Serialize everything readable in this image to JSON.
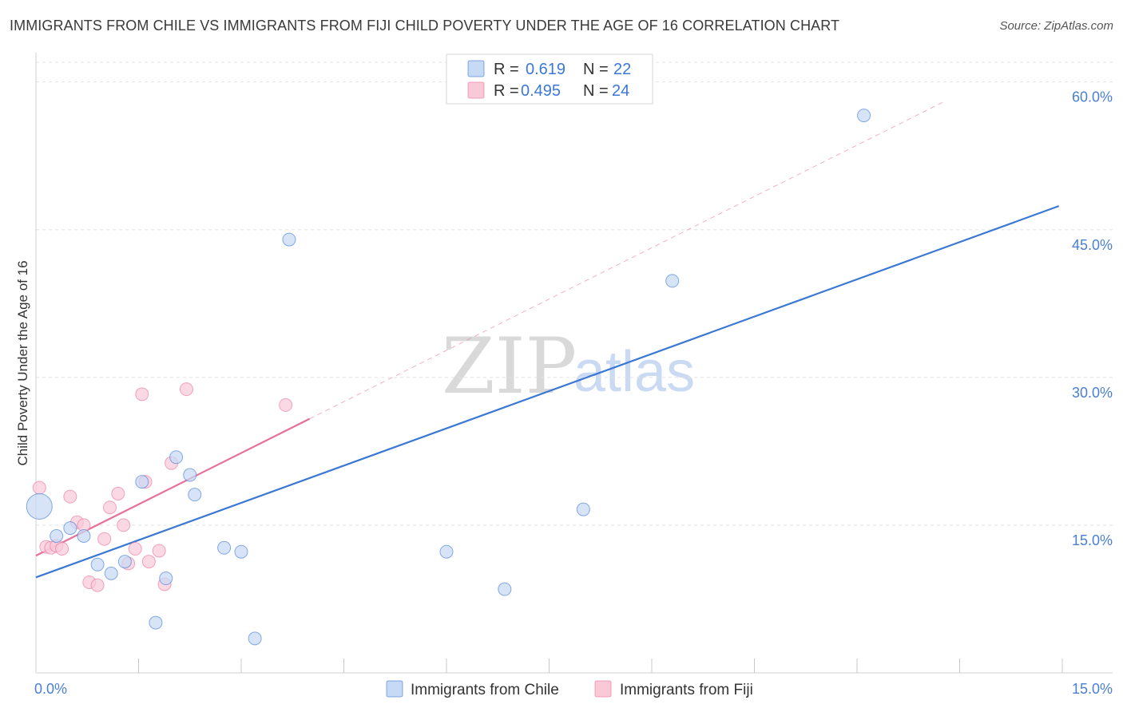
{
  "title": "IMMIGRANTS FROM CHILE VS IMMIGRANTS FROM FIJI CHILD POVERTY UNDER THE AGE OF 16 CORRELATION CHART",
  "source": "Source: ZipAtlas.com",
  "watermark": {
    "zip": "ZIP",
    "atlas": "atlas"
  },
  "colors": {
    "chile": "#3a78d4",
    "chile_fill": "#c6d9f5",
    "fiji": "#e7709a",
    "fiji_fill": "#f9c9d8",
    "tick": "#4a7fd4"
  },
  "legend": {
    "rows": [
      {
        "r_label": "R = ",
        "r_value": "0.619",
        "n_label": "N = ",
        "n_value": "22"
      },
      {
        "r_label": "R = ",
        "r_value": "0.495",
        "n_label": "N = ",
        "n_value": "24"
      }
    ]
  },
  "chart_data": {
    "type": "scatter",
    "title": "IMMIGRANTS FROM CHILE VS IMMIGRANTS FROM FIJI CHILD POVERTY UNDER THE AGE OF 16 CORRELATION CHART",
    "xlabel": "",
    "ylabel": "Child Poverty Under the Age of 16",
    "xlim": [
      0,
      15
    ],
    "ylim": [
      0,
      62
    ],
    "x_tick_labels": [
      "0.0%",
      "15.0%"
    ],
    "y_ticks": [
      15,
      30,
      45,
      60
    ],
    "y_tick_labels": [
      "15.0%",
      "30.0%",
      "45.0%",
      "60.0%"
    ],
    "grid": true,
    "legend_position": "top-center",
    "series": [
      {
        "name": "Immigrants from Chile",
        "r": 0.619,
        "n": 22,
        "trend": {
          "x": [
            0,
            14.95
          ],
          "y": [
            9.7,
            47.4
          ]
        },
        "points": [
          {
            "x": 0.05,
            "y": 16.9,
            "big": true
          },
          {
            "x": 0.3,
            "y": 13.9
          },
          {
            "x": 0.5,
            "y": 14.7
          },
          {
            "x": 0.7,
            "y": 13.9
          },
          {
            "x": 0.9,
            "y": 11.0
          },
          {
            "x": 1.1,
            "y": 10.1
          },
          {
            "x": 1.3,
            "y": 11.3
          },
          {
            "x": 1.55,
            "y": 19.4
          },
          {
            "x": 1.75,
            "y": 5.1
          },
          {
            "x": 1.9,
            "y": 9.6
          },
          {
            "x": 2.05,
            "y": 21.9
          },
          {
            "x": 2.25,
            "y": 20.1
          },
          {
            "x": 2.32,
            "y": 18.1
          },
          {
            "x": 2.75,
            "y": 12.7
          },
          {
            "x": 3.0,
            "y": 12.3
          },
          {
            "x": 3.2,
            "y": 3.5
          },
          {
            "x": 3.7,
            "y": 44.0
          },
          {
            "x": 6.0,
            "y": 12.3
          },
          {
            "x": 6.85,
            "y": 8.5
          },
          {
            "x": 8.0,
            "y": 16.6
          },
          {
            "x": 9.3,
            "y": 39.8
          },
          {
            "x": 12.1,
            "y": 56.6
          }
        ]
      },
      {
        "name": "Immigrants from Fiji",
        "r": 0.495,
        "n": 24,
        "trend": {
          "x": [
            0,
            4.0
          ],
          "y": [
            11.9,
            25.8
          ]
        },
        "trend_extended": {
          "x": [
            4.0,
            13.3
          ],
          "y": [
            25.8,
            58.1
          ]
        },
        "points": [
          {
            "x": 0.05,
            "y": 18.8
          },
          {
            "x": 0.15,
            "y": 12.8
          },
          {
            "x": 0.22,
            "y": 12.7
          },
          {
            "x": 0.3,
            "y": 12.9
          },
          {
            "x": 0.38,
            "y": 12.6
          },
          {
            "x": 0.5,
            "y": 17.9
          },
          {
            "x": 0.6,
            "y": 15.3
          },
          {
            "x": 0.7,
            "y": 15.0
          },
          {
            "x": 0.78,
            "y": 9.2
          },
          {
            "x": 0.9,
            "y": 8.9
          },
          {
            "x": 1.0,
            "y": 13.6
          },
          {
            "x": 1.08,
            "y": 16.8
          },
          {
            "x": 1.2,
            "y": 18.2
          },
          {
            "x": 1.28,
            "y": 15.0
          },
          {
            "x": 1.35,
            "y": 11.1
          },
          {
            "x": 1.45,
            "y": 12.6
          },
          {
            "x": 1.55,
            "y": 28.3
          },
          {
            "x": 1.6,
            "y": 19.4
          },
          {
            "x": 1.65,
            "y": 11.3
          },
          {
            "x": 1.8,
            "y": 12.4
          },
          {
            "x": 1.88,
            "y": 9.0
          },
          {
            "x": 1.98,
            "y": 21.3
          },
          {
            "x": 2.2,
            "y": 28.8
          },
          {
            "x": 3.65,
            "y": 27.2
          }
        ]
      }
    ]
  }
}
